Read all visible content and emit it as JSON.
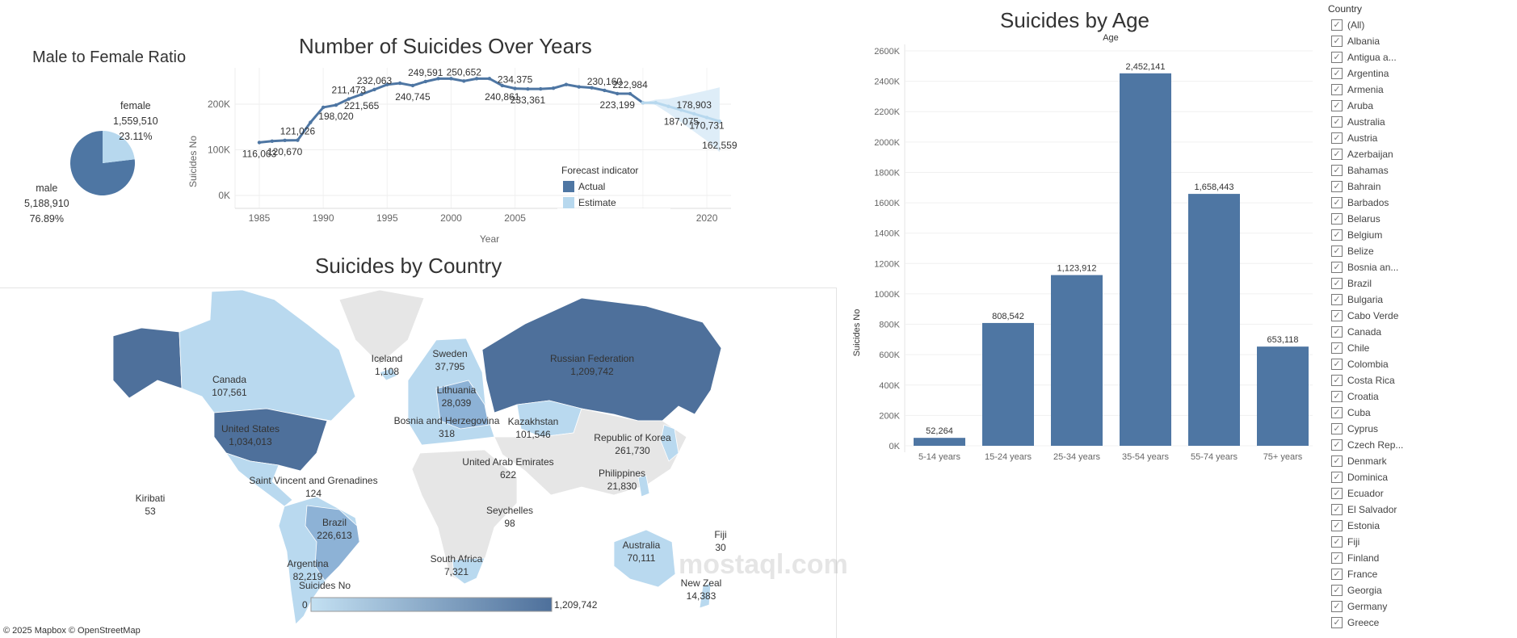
{
  "colors": {
    "actual": "#4e76a3",
    "estimate": "#b7d8ee",
    "band": "#deedf8",
    "light_country": "#b9d9ef",
    "mid_country": "#8db2d6",
    "dark_country": "#4e709b",
    "no_data": "#e6e6e6"
  },
  "pie": {
    "title": "Male to Female Ratio",
    "female": {
      "label": "female",
      "value": "1,559,510",
      "pct": "23.11%",
      "share": 23.11
    },
    "male": {
      "label": "male",
      "value": "5,188,910",
      "pct": "76.89%",
      "share": 76.89
    }
  },
  "line_chart": {
    "title": "Number of Suicides Over Years",
    "chart_data": {
      "type": "line",
      "xlabel": "Year",
      "ylabel": "Suicides No",
      "xlim": [
        1983,
        2023
      ],
      "ylim": [
        0,
        280000
      ],
      "xticks": [
        "1985",
        "1990",
        "1995",
        "2000",
        "2005",
        "2010",
        "2015",
        "2020"
      ],
      "yticks": [
        "0K",
        "100K",
        "200K"
      ],
      "grid": true,
      "series": [
        {
          "name": "Actual",
          "x": [
            1985,
            1986,
            1987,
            1988,
            1989,
            1990,
            1991,
            1992,
            1993,
            1994,
            1995,
            1996,
            1997,
            1998,
            1999,
            2000,
            2001,
            2002,
            2003,
            2004,
            2005,
            2006,
            2007,
            2008,
            2009,
            2010,
            2011,
            2012,
            2013,
            2014,
            2015
          ],
          "y": [
            116063,
            119000,
            120670,
            121026,
            160000,
            193000,
            198020,
            211473,
            221565,
            232063,
            243000,
            246000,
            240745,
            249591,
            256000,
            256000,
            250652,
            256000,
            256000,
            240861,
            234375,
            233361,
            233500,
            235000,
            243000,
            238000,
            236000,
            230160,
            223199,
            222984,
            203000
          ]
        },
        {
          "name": "Estimate",
          "x": [
            2015,
            2016,
            2017,
            2018,
            2019,
            2020,
            2021
          ],
          "y": [
            203000,
            203419,
            195247,
            187075,
            178903,
            170731,
            162559
          ],
          "band_low": [
            203000,
            198000,
            180000,
            160000,
            140000,
            120000,
            95000
          ],
          "band_high": [
            203000,
            210000,
            212000,
            218000,
            224000,
            230000,
            237000
          ]
        }
      ],
      "data_labels": [
        {
          "x": 1985,
          "text": "116,063"
        },
        {
          "x": 1987,
          "text": "120,670"
        },
        {
          "x": 1988,
          "text": "121,026"
        },
        {
          "x": 1991,
          "text": "198,020"
        },
        {
          "x": 1992,
          "text": "211,473"
        },
        {
          "x": 1993,
          "text": "221,565"
        },
        {
          "x": 1994,
          "text": "232,063"
        },
        {
          "x": 1997,
          "text": "240,745"
        },
        {
          "x": 1998,
          "text": "249,591"
        },
        {
          "x": 2001,
          "text": "250,652"
        },
        {
          "x": 2004,
          "text": "240,861"
        },
        {
          "x": 2005,
          "text": "234,375"
        },
        {
          "x": 2006,
          "text": "233,361"
        },
        {
          "x": 2012,
          "text": "230,160"
        },
        {
          "x": 2013,
          "text": "223,199"
        },
        {
          "x": 2014,
          "text": "222,984"
        },
        {
          "x": 2018,
          "text": "187,075"
        },
        {
          "x": 2019,
          "text": "178,903"
        },
        {
          "x": 2020,
          "text": "170,731"
        },
        {
          "x": 2021,
          "text": "162,559"
        }
      ],
      "legend": {
        "title": "Forecast indicator",
        "items": [
          "Actual",
          "Estimate"
        ],
        "placement": "bottom-right"
      }
    }
  },
  "map": {
    "title": "Suicides by Country",
    "labels": [
      {
        "name": "Canada",
        "value": "107,561"
      },
      {
        "name": "United States",
        "value": "1,034,013"
      },
      {
        "name": "Iceland",
        "value": "1,108"
      },
      {
        "name": "Sweden",
        "value": "37,795"
      },
      {
        "name": "Russian Federation",
        "value": "1,209,742"
      },
      {
        "name": "Lithuania",
        "value": "28,039"
      },
      {
        "name": "Kazakhstan",
        "value": "101,546"
      },
      {
        "name": "Bosnia and Herzegovina",
        "value": "318"
      },
      {
        "name": "Republic of Korea",
        "value": "261,730"
      },
      {
        "name": "United Arab Emirates",
        "value": "622"
      },
      {
        "name": "Philippines",
        "value": "21,830"
      },
      {
        "name": "Saint Vincent and Grenadines",
        "value": "124"
      },
      {
        "name": "Kiribati",
        "value": "53"
      },
      {
        "name": "Brazil",
        "value": "226,613"
      },
      {
        "name": "Seychelles",
        "value": "98"
      },
      {
        "name": "Argentina",
        "value": "82,219"
      },
      {
        "name": "South Africa",
        "value": "7,321"
      },
      {
        "name": "Australia",
        "value": "70,111"
      },
      {
        "name": "New Zeal",
        "value": "14,383"
      },
      {
        "name": "Fiji",
        "value": "30"
      }
    ],
    "legend": {
      "title": "Suicides No",
      "min": "0",
      "max": "1,209,742"
    },
    "copyright": "© 2025 Mapbox © OpenStreetMap"
  },
  "bar_chart": {
    "title": "Suicides by Age",
    "chart_data": {
      "type": "bar",
      "title": "Suicides by Age",
      "xlabel": "Age",
      "ylabel": "Suicides No",
      "categories": [
        "5-14 years",
        "15-24 years",
        "25-34 years",
        "35-54 years",
        "55-74 years",
        "75+ years"
      ],
      "values": [
        52264,
        808542,
        1123912,
        2452141,
        1658443,
        653118
      ],
      "value_labels": [
        "52,264",
        "808,542",
        "1,123,912",
        "2,452,141",
        "1,658,443",
        "653,118"
      ],
      "ylim": [
        0,
        2600000
      ],
      "yticks": [
        "0K",
        "200K",
        "400K",
        "600K",
        "800K",
        "1000K",
        "1200K",
        "1400K",
        "1600K",
        "1800K",
        "2000K",
        "2200K",
        "2400K",
        "2600K"
      ],
      "grid": true
    }
  },
  "filter": {
    "title": "Country",
    "items": [
      "(All)",
      "Albania",
      "Antigua a...",
      "Argentina",
      "Armenia",
      "Aruba",
      "Australia",
      "Austria",
      "Azerbaijan",
      "Bahamas",
      "Bahrain",
      "Barbados",
      "Belarus",
      "Belgium",
      "Belize",
      "Bosnia an...",
      "Brazil",
      "Bulgaria",
      "Cabo Verde",
      "Canada",
      "Chile",
      "Colombia",
      "Costa Rica",
      "Croatia",
      "Cuba",
      "Cyprus",
      "Czech Rep...",
      "Denmark",
      "Dominica",
      "Ecuador",
      "El Salvador",
      "Estonia",
      "Fiji",
      "Finland",
      "France",
      "Georgia",
      "Germany",
      "Greece"
    ],
    "checked": true
  },
  "watermark": "mostaql.com"
}
